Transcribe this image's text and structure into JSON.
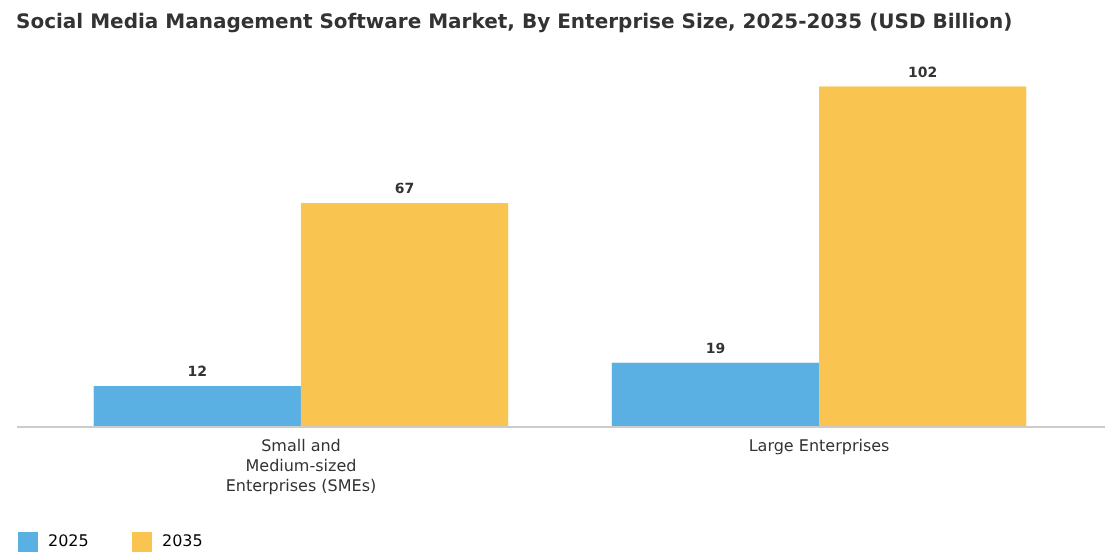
{
  "chart_data": {
    "type": "bar",
    "title": "Social Media Management Software Market, By Enterprise Size, 2025-2035 (USD Billion)",
    "categories": [
      "Small and Medium-sized Enterprises (SMEs)",
      "Large Enterprises"
    ],
    "series": [
      {
        "name": "2025",
        "color": "#5aafe3",
        "values": [
          12,
          19
        ]
      },
      {
        "name": "2035",
        "color": "#f9c44f",
        "values": [
          67,
          102
        ]
      }
    ],
    "tick_labels": "x",
    "data_labels": true,
    "legend": "bottom"
  }
}
